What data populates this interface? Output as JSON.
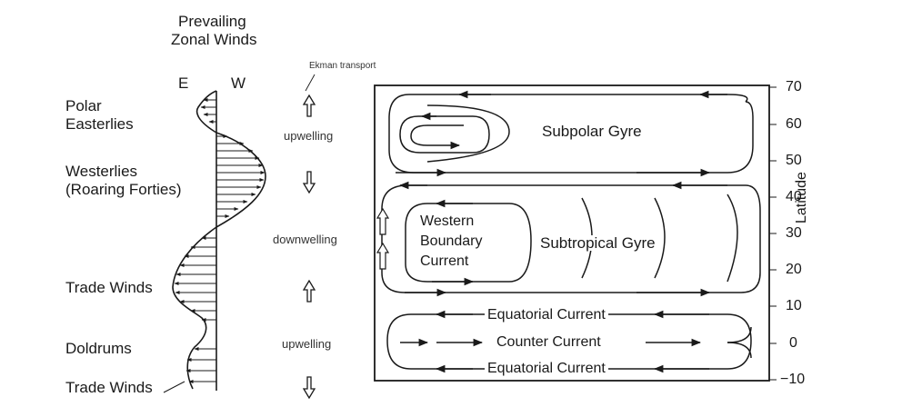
{
  "winds": {
    "title_line1": "Prevailing",
    "title_line2": "Zonal Winds",
    "dir_east": "E",
    "dir_west": "W",
    "bands": {
      "polar_1": "Polar",
      "polar_2": "Easterlies",
      "westerlies_1": "Westerlies",
      "westerlies_2": "(Roaring Forties)",
      "trade_north": "Trade Winds",
      "doldrums": "Doldrums",
      "trade_south": "Trade Winds"
    }
  },
  "ekman": {
    "label": "Ekman transport",
    "upwelling_north": "upwelling",
    "downwelling": "downwelling",
    "upwelling_equator": "upwelling"
  },
  "ocean": {
    "subpolar_gyre": "Subpolar Gyre",
    "western_boundary_1": "Western",
    "western_boundary_2": "Boundary",
    "western_boundary_3": "Current",
    "subtropical_gyre": "Subtropical Gyre",
    "equatorial_north": "Equatorial Current",
    "counter_current": "Counter Current",
    "equatorial_south": "Equatorial Current"
  },
  "latitude_axis": {
    "label": "Latitude",
    "ticks": [
      "70",
      "60",
      "50",
      "40",
      "30",
      "20",
      "10",
      "0",
      "−10"
    ]
  }
}
